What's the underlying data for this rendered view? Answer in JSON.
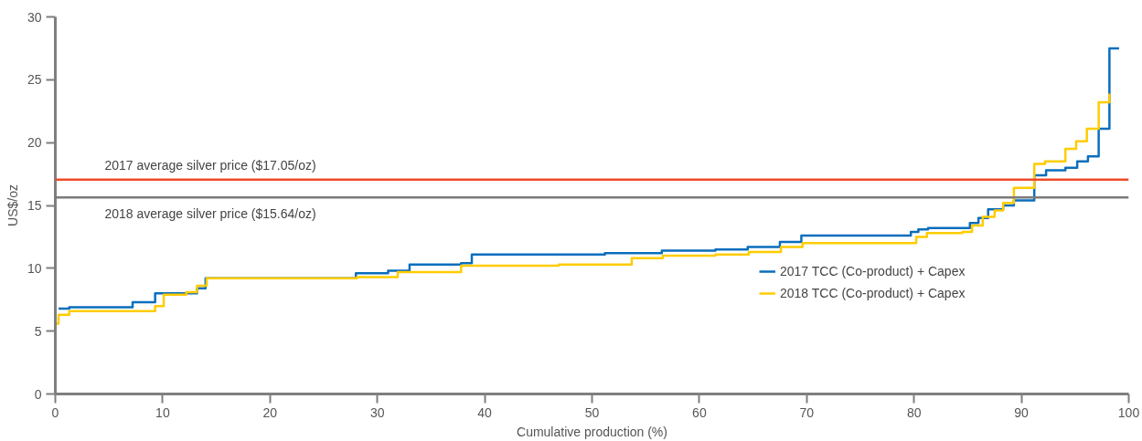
{
  "chart_data": {
    "type": "step",
    "xlabel": "Cumulative production (%)",
    "ylabel": "US$/oz",
    "xlim": [
      0,
      100
    ],
    "ylim": [
      0,
      30
    ],
    "xticks": [
      0,
      10,
      20,
      30,
      40,
      50,
      60,
      70,
      80,
      90,
      100
    ],
    "yticks": [
      0,
      5,
      10,
      15,
      20,
      25,
      30
    ],
    "grid": false,
    "legend": "right",
    "line_style": "solid",
    "marker": "none",
    "series": [
      {
        "name": "2017 TCC (Co-product) + Capex",
        "color": "#0a6ebd",
        "x": [
          0.3,
          1.3,
          7.2,
          9.3,
          13.2,
          14.0,
          28.0,
          31.0,
          33.0,
          37.8,
          38.8,
          51.2,
          56.5,
          61.5,
          64.5,
          67.5,
          69.5,
          79.7,
          80.4,
          81.3,
          85.2,
          86.0,
          86.9,
          88.3,
          89.3,
          91.2,
          92.3,
          94.1,
          95.2,
          96.2,
          97.2,
          98.2,
          99.1
        ],
        "values": [
          6.8,
          6.9,
          7.3,
          8.0,
          8.4,
          9.2,
          9.6,
          9.8,
          10.3,
          10.4,
          11.1,
          11.2,
          11.4,
          11.5,
          11.7,
          12.1,
          12.6,
          12.9,
          13.1,
          13.2,
          13.6,
          14.0,
          14.7,
          15.0,
          15.4,
          17.4,
          17.8,
          18.0,
          18.5,
          18.9,
          21.1,
          27.5,
          27.5
        ]
      },
      {
        "name": "2018 TCC (Co-product) + Capex",
        "color": "#ffcc00",
        "x": [
          0.1,
          0.3,
          1.3,
          9.3,
          10.1,
          12.2,
          13.2,
          14.1,
          28.1,
          31.9,
          37.8,
          46.9,
          53.7,
          56.6,
          61.5,
          64.6,
          67.6,
          69.6,
          80.2,
          81.2,
          84.5,
          85.4,
          86.4,
          87.5,
          88.3,
          89.3,
          91.2,
          92.2,
          94.1,
          95.1,
          96.1,
          97.2,
          98.2
        ],
        "values": [
          5.6,
          6.3,
          6.6,
          7.0,
          7.9,
          8.1,
          8.6,
          9.2,
          9.3,
          9.7,
          10.2,
          10.3,
          10.8,
          11.0,
          11.1,
          11.3,
          11.7,
          12.0,
          12.5,
          12.8,
          12.9,
          13.4,
          14.1,
          14.6,
          15.2,
          16.4,
          18.3,
          18.5,
          19.5,
          20.1,
          21.1,
          23.2,
          23.9
        ]
      }
    ],
    "ref_lines": [
      {
        "axis": "y",
        "value": 17.05,
        "label": "2017 average silver price ($17.05/oz)",
        "color": "#ee4b2b"
      },
      {
        "axis": "y",
        "value": 15.64,
        "label": "2018 average silver price ($15.64/oz)",
        "color": "#7a7a7a"
      }
    ]
  }
}
